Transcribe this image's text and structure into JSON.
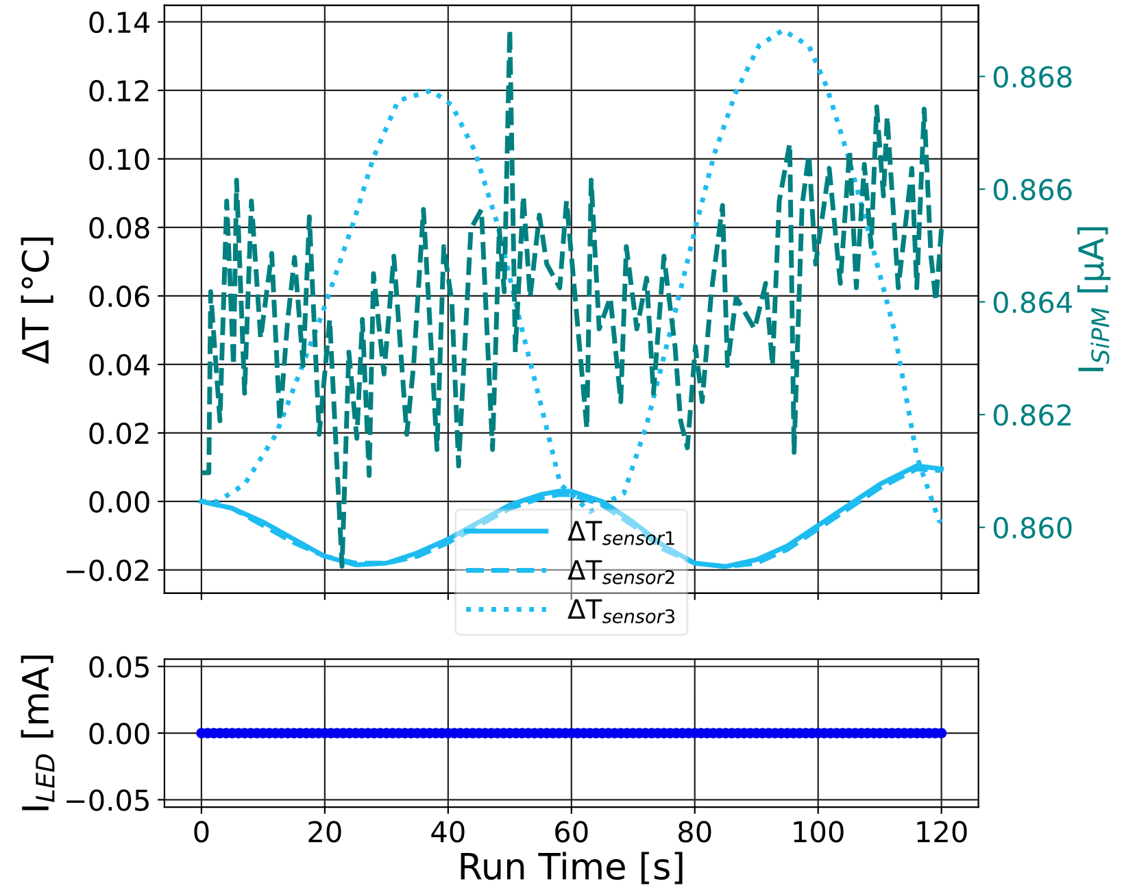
{
  "chart_data": [
    {
      "type": "line",
      "ylabel": "ΔT [°C]",
      "y2label": "I$_{SiPM}$ [µA]",
      "xlim": [
        -6,
        126
      ],
      "xticks": [
        0,
        20,
        40,
        60,
        80,
        100,
        120
      ],
      "ylim": [
        -0.0268,
        0.1448
      ],
      "yticks": [
        {
          "value": -0.02,
          "label": "−0.02"
        },
        {
          "value": 0.0,
          "label": "0.00"
        },
        {
          "value": 0.02,
          "label": "0.02"
        },
        {
          "value": 0.04,
          "label": "0.04"
        },
        {
          "value": 0.06,
          "label": "0.06"
        },
        {
          "value": 0.08,
          "label": "0.08"
        },
        {
          "value": 0.1,
          "label": "0.10"
        },
        {
          "value": 0.12,
          "label": "0.12"
        },
        {
          "value": 0.14,
          "label": "0.14"
        }
      ],
      "y2lim": [
        0.85883,
        0.86926
      ],
      "y2ticks": [
        {
          "value": 0.86,
          "label": "0.860"
        },
        {
          "value": 0.862,
          "label": "0.862"
        },
        {
          "value": 0.864,
          "label": "0.864"
        },
        {
          "value": 0.866,
          "label": "0.866"
        },
        {
          "value": 0.868,
          "label": "0.868"
        }
      ],
      "grid": true,
      "legend": "bottom",
      "tick_labels": "y",
      "series": [
        {
          "name": "ΔT$_{sensor1}$",
          "color": "#1ebcf0",
          "line_style": "solid",
          "x": [
            0,
            5,
            10,
            15,
            20,
            25,
            30,
            35,
            40,
            45,
            50,
            55,
            58,
            60,
            65,
            70,
            75,
            80,
            85,
            90,
            95,
            100,
            105,
            110,
            116,
            120
          ],
          "values": [
            0.0,
            -0.002,
            -0.006,
            -0.011,
            -0.016,
            -0.0185,
            -0.018,
            -0.015,
            -0.011,
            -0.006,
            -0.001,
            0.002,
            0.003,
            0.003,
            0.0,
            -0.006,
            -0.013,
            -0.018,
            -0.019,
            -0.017,
            -0.013,
            -0.007,
            -0.001,
            0.005,
            0.0104,
            0.0095
          ]
        },
        {
          "name": "ΔT$_{sensor2}$",
          "color": "#1ebcf0",
          "line_style": "dashed",
          "x": [
            0,
            5,
            10,
            15,
            20,
            25,
            30,
            35,
            40,
            45,
            50,
            55,
            58,
            60,
            65,
            70,
            75,
            80,
            85,
            90,
            95,
            100,
            105,
            110,
            116,
            120
          ],
          "values": [
            0.0,
            -0.002,
            -0.007,
            -0.012,
            -0.016,
            -0.018,
            -0.018,
            -0.016,
            -0.012,
            -0.007,
            -0.002,
            0.001,
            0.002,
            0.002,
            -0.001,
            -0.007,
            -0.014,
            -0.018,
            -0.019,
            -0.018,
            -0.014,
            -0.008,
            -0.002,
            0.004,
            0.0095,
            0.009
          ]
        },
        {
          "name": "ΔT$_{sensor3}$",
          "color": "#1ebcf0",
          "line_style": "dotted",
          "x": [
            0,
            2.6,
            7,
            12.1,
            19.5,
            24.6,
            27.9,
            31.9,
            37.3,
            40.6,
            44.3,
            48,
            51.6,
            55.3,
            58.2,
            63,
            68.5,
            72.2,
            76.5,
            80.1,
            83.1,
            86.7,
            90.4,
            94.3,
            98.5,
            101.4,
            105,
            108.6,
            112.3,
            116,
            119.6,
            120
          ],
          "values": [
            0.0,
            0.0,
            0.005,
            0.0196,
            0.0544,
            0.0812,
            0.1004,
            0.117,
            0.12,
            0.1157,
            0.1024,
            0.081,
            0.053,
            0.0264,
            0.005,
            -0.003,
            0.0024,
            0.0224,
            0.053,
            0.0797,
            0.101,
            0.1196,
            0.133,
            0.1376,
            0.133,
            0.121,
            0.1,
            0.076,
            0.0504,
            0.0132,
            -0.0056,
            -0.006
          ]
        },
        {
          "color": "#008080",
          "line_style": "dashed",
          "axis": "y2",
          "x": [
            0,
            1.2,
            1.5,
            3.0,
            4.1,
            5.2,
            5.7,
            7.0,
            8.1,
            9.6,
            11.4,
            12.7,
            14.0,
            15.1,
            16.5,
            17.5,
            19.1,
            20.8,
            22.8,
            23.9,
            25.2,
            26.1,
            27.2,
            27.9,
            29.6,
            31.2,
            33.3,
            34.4,
            36.0,
            38.2,
            39.3,
            40.6,
            41.7,
            43.7,
            45.4,
            47.2,
            48.3,
            49.1,
            50.0,
            50.9,
            52.2,
            53.3,
            54.8,
            56.0,
            58.1,
            59.2,
            60.4,
            62.5,
            63.2,
            64.5,
            66.3,
            68.0,
            68.9,
            70.6,
            72.2,
            73.3,
            75.0,
            76.8,
            77.7,
            78.8,
            80.1,
            81.2,
            82.7,
            84.5,
            85.3,
            86.7,
            89.7,
            91.5,
            92.6,
            93.7,
            95.4,
            96.1,
            97.4,
            98.5,
            99.6,
            101.8,
            103.6,
            105.1,
            106.2,
            107.5,
            108.6,
            109.5,
            110.6,
            111.2,
            113.0,
            115.2,
            116.0,
            117.2,
            118.3,
            119.1,
            120.0
          ],
          "values": [
            0.86097,
            0.86097,
            0.86418,
            0.86189,
            0.86579,
            0.86287,
            0.86616,
            0.86238,
            0.86579,
            0.86335,
            0.86486,
            0.86189,
            0.86369,
            0.86479,
            0.86287,
            0.86551,
            0.86165,
            0.86369,
            0.85931,
            0.86311,
            0.86158,
            0.86369,
            0.86092,
            0.8645,
            0.86272,
            0.86481,
            0.86165,
            0.86287,
            0.86564,
            0.86138,
            0.86498,
            0.86401,
            0.86109,
            0.8653,
            0.86564,
            0.86138,
            0.8653,
            0.86418,
            0.86883,
            0.86311,
            0.86588,
            0.86408,
            0.86554,
            0.86467,
            0.86425,
            0.86579,
            0.86433,
            0.86175,
            0.86616,
            0.86352,
            0.86408,
            0.86223,
            0.86498,
            0.86352,
            0.86442,
            0.86238,
            0.86481,
            0.86321,
            0.86189,
            0.86141,
            0.86321,
            0.86223,
            0.86418,
            0.86571,
            0.86287,
            0.86408,
            0.86352,
            0.86433,
            0.86287,
            0.86579,
            0.86681,
            0.86133,
            0.86571,
            0.86661,
            0.86467,
            0.86637,
            0.86433,
            0.86669,
            0.86425,
            0.86644,
            0.86498,
            0.86746,
            0.86588,
            0.86729,
            0.86425,
            0.86637,
            0.86425,
            0.86742,
            0.86481,
            0.86401,
            0.8653
          ]
        }
      ]
    },
    {
      "type": "scatter",
      "ylabel": "I$_{LED}$ [mA]",
      "xlabel": "Run Time [s]",
      "xlim": [
        -6,
        126
      ],
      "xticks": [
        0,
        20,
        40,
        60,
        80,
        100,
        120
      ],
      "ylim": [
        -0.0555,
        0.0555
      ],
      "yticks": [
        {
          "value": -0.05,
          "label": "−0.05"
        },
        {
          "value": 0.0,
          "label": "0.00"
        },
        {
          "value": 0.05,
          "label": "0.05"
        }
      ],
      "grid": true,
      "marker": "circle",
      "series": [
        {
          "color": "#0000ee",
          "x": [
            0,
            1,
            2,
            3,
            4,
            5,
            6,
            7,
            8,
            9,
            10,
            11,
            12,
            13,
            14,
            15,
            16,
            17,
            18,
            19,
            20,
            21,
            22,
            23,
            24,
            25,
            26,
            27,
            28,
            29,
            30,
            31,
            32,
            33,
            34,
            35,
            36,
            37,
            38,
            39,
            40,
            41,
            42,
            43,
            44,
            45,
            46,
            47,
            48,
            49,
            50,
            51,
            52,
            53,
            54,
            55,
            56,
            57,
            58,
            59,
            60,
            61,
            62,
            63,
            64,
            65,
            66,
            67,
            68,
            69,
            70,
            71,
            72,
            73,
            74,
            75,
            76,
            77,
            78,
            79,
            80,
            81,
            82,
            83,
            84,
            85,
            86,
            87,
            88,
            89,
            90,
            91,
            92,
            93,
            94,
            95,
            96,
            97,
            98,
            99,
            100,
            101,
            102,
            103,
            104,
            105,
            106,
            107,
            108,
            109,
            110,
            111,
            112,
            113,
            114,
            115,
            116,
            117,
            118,
            119,
            120
          ],
          "values": [
            0,
            0,
            0,
            0,
            0,
            0,
            0,
            0,
            0,
            0,
            0,
            0,
            0,
            0,
            0,
            0,
            0,
            0,
            0,
            0,
            0,
            0,
            0,
            0,
            0,
            0,
            0,
            0,
            0,
            0,
            0,
            0,
            0,
            0,
            0,
            0,
            0,
            0,
            0,
            0,
            0,
            0,
            0,
            0,
            0,
            0,
            0,
            0,
            0,
            0,
            0,
            0,
            0,
            0,
            0,
            0,
            0,
            0,
            0,
            0,
            0,
            0,
            0,
            0,
            0,
            0,
            0,
            0,
            0,
            0,
            0,
            0,
            0,
            0,
            0,
            0,
            0,
            0,
            0,
            0,
            0,
            0,
            0,
            0,
            0,
            0,
            0,
            0,
            0,
            0,
            0,
            0,
            0,
            0,
            0,
            0,
            0,
            0,
            0,
            0,
            0,
            0,
            0,
            0,
            0,
            0,
            0,
            0,
            0,
            0,
            0,
            0,
            0,
            0,
            0,
            0,
            0,
            0,
            0,
            0,
            0
          ]
        }
      ]
    }
  ]
}
